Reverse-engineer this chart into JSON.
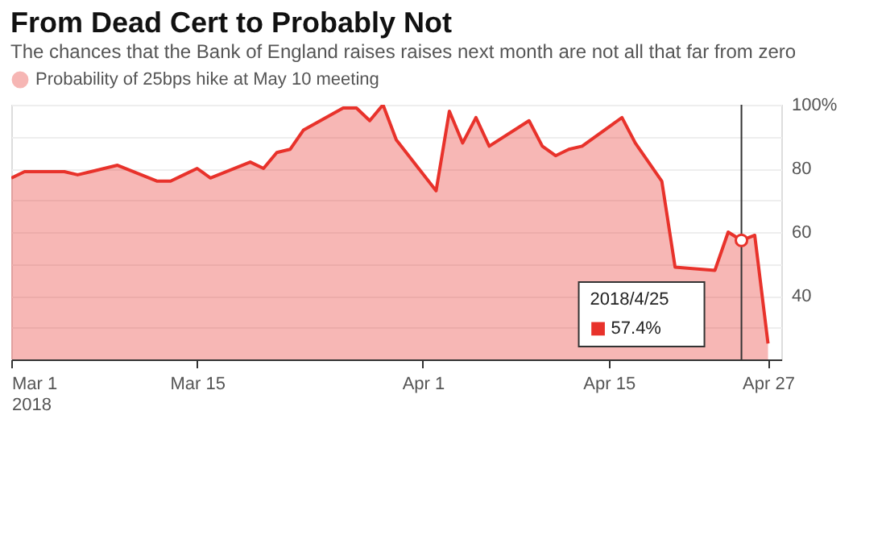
{
  "chart_data": {
    "type": "area",
    "title": "From Dead Cert to Probably Not",
    "subtitle": "The chances that the Bank of England raises raises next month are not all that far from zero",
    "x": [
      "2018-03-01",
      "2018-03-02",
      "2018-03-05",
      "2018-03-06",
      "2018-03-07",
      "2018-03-08",
      "2018-03-09",
      "2018-03-12",
      "2018-03-13",
      "2018-03-14",
      "2018-03-15",
      "2018-03-16",
      "2018-03-19",
      "2018-03-20",
      "2018-03-21",
      "2018-03-22",
      "2018-03-23",
      "2018-03-26",
      "2018-03-27",
      "2018-03-28",
      "2018-03-29",
      "2018-03-30",
      "2018-04-02",
      "2018-04-03",
      "2018-04-04",
      "2018-04-05",
      "2018-04-06",
      "2018-04-09",
      "2018-04-10",
      "2018-04-11",
      "2018-04-12",
      "2018-04-13",
      "2018-04-16",
      "2018-04-17",
      "2018-04-18",
      "2018-04-19",
      "2018-04-20",
      "2018-04-23",
      "2018-04-24",
      "2018-04-25",
      "2018-04-26",
      "2018-04-27"
    ],
    "series": [
      {
        "name": "Probability of 25bps hike at May 10 meeting",
        "color": "#e8322b",
        "values": [
          77,
          79,
          79,
          78,
          79,
          80,
          81,
          76,
          76,
          78,
          80,
          77,
          82,
          80,
          85,
          86,
          92,
          99,
          99,
          95,
          100,
          89,
          73,
          98,
          88,
          96,
          87,
          95,
          87,
          84,
          86,
          87,
          96,
          88,
          82,
          76,
          49,
          48,
          60,
          57.4,
          59,
          25
        ]
      }
    ],
    "xlim": [
      "2018-03-01",
      "2018-04-28"
    ],
    "xticks": [
      {
        "value": "2018-03-01",
        "label": "Mar 1\n2018"
      },
      {
        "value": "2018-03-15",
        "label": "Mar 15"
      },
      {
        "value": "2018-04-01",
        "label": "Apr 1"
      },
      {
        "value": "2018-04-15",
        "label": "Apr 15"
      },
      {
        "value": "2018-04-27",
        "label": "Apr 27"
      }
    ],
    "ylim": [
      20,
      100
    ],
    "yticks": [
      {
        "value": 30,
        "label": null
      },
      40,
      {
        "value": 50,
        "label": null
      },
      60,
      {
        "value": 70,
        "label": null
      },
      80,
      {
        "value": 90,
        "label": null
      },
      {
        "value": 100,
        "label": "100%"
      }
    ],
    "grid": "y",
    "legend": "top left",
    "marker": "none",
    "line_style": "solid",
    "ref_lines": [
      {
        "axis": "x",
        "value": "2018-04-25",
        "color": "#333333"
      }
    ],
    "annotations": [
      "2018/4/25\n57.4%"
    ]
  }
}
